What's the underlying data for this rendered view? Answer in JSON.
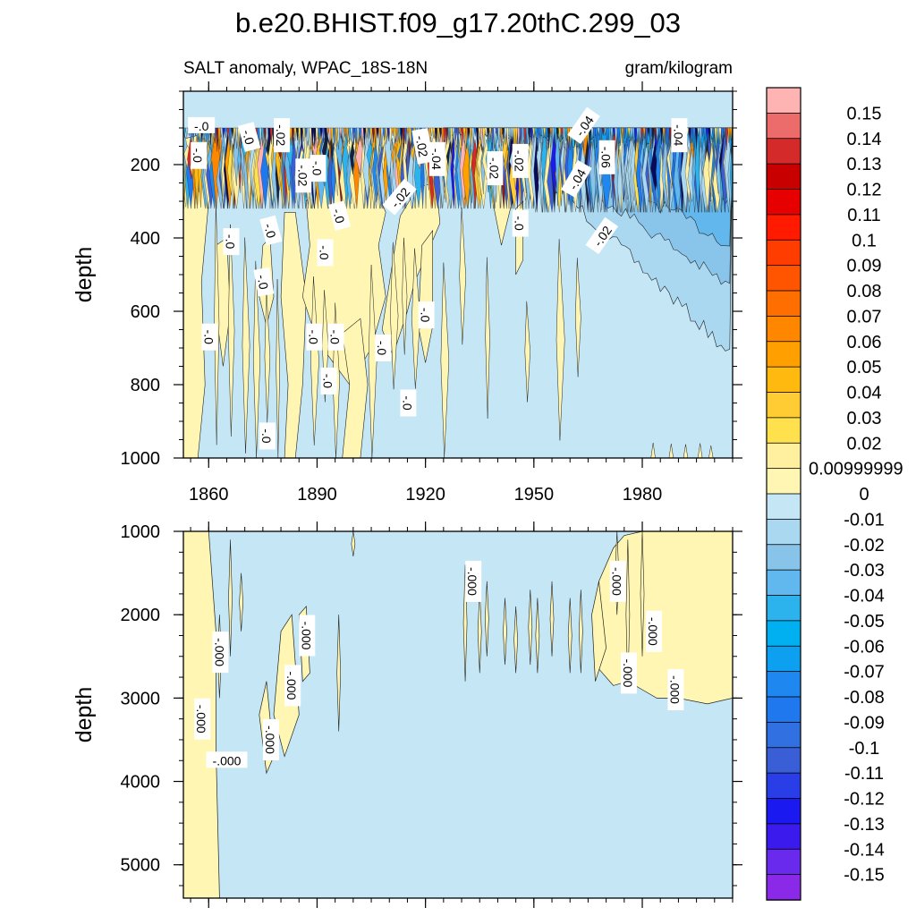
{
  "chart_data": {
    "type": "heatmap",
    "title": "b.e20.BHIST.f09_g17.20thC.299_03",
    "subtitle_left": "SALT anomaly, WPAC_18S-18N",
    "subtitle_right": "gram/kilogram",
    "x_ticks": [
      "1860",
      "1890",
      "1920",
      "1950",
      "1980"
    ],
    "x_tick_values": [
      1860,
      1890,
      1920,
      1950,
      1980
    ],
    "xlim": [
      1853,
      2005
    ],
    "panels": [
      {
        "ylabel": "depth",
        "ylim": [
          0,
          1000
        ],
        "y_ticks": [
          "200",
          "400",
          "600",
          "800",
          "1000"
        ],
        "y_tick_values": [
          200,
          400,
          600,
          800,
          1000
        ],
        "contour_labels": [
          {
            "text": "-.0",
            "year": 1858,
            "depth": 95,
            "angle": 0
          },
          {
            "text": "-.0",
            "year": 1857,
            "depth": 175,
            "angle": 90
          },
          {
            "text": "-.0",
            "year": 1871,
            "depth": 125,
            "angle": 75
          },
          {
            "text": "-.02",
            "year": 1880,
            "depth": 120,
            "angle": 90
          },
          {
            "text": "-.02",
            "year": 1886,
            "depth": 230,
            "angle": 90
          },
          {
            "text": "-.0",
            "year": 1890,
            "depth": 210,
            "angle": 90
          },
          {
            "text": "-.0",
            "year": 1896,
            "depth": 340,
            "angle": 75
          },
          {
            "text": "-.02",
            "year": 1913,
            "depth": 290,
            "angle": -50
          },
          {
            "text": "-.02",
            "year": 1919,
            "depth": 150,
            "angle": 80
          },
          {
            "text": "-.04",
            "year": 1923,
            "depth": 185,
            "angle": 90
          },
          {
            "text": "-.02",
            "year": 1939,
            "depth": 210,
            "angle": 90
          },
          {
            "text": "-.02",
            "year": 1946,
            "depth": 190,
            "angle": 90
          },
          {
            "text": "-.0",
            "year": 1946,
            "depth": 360,
            "angle": 90
          },
          {
            "text": "-.04",
            "year": 1964,
            "depth": 95,
            "angle": -55
          },
          {
            "text": "-.04",
            "year": 1962,
            "depth": 240,
            "angle": -60
          },
          {
            "text": "-.06",
            "year": 1970,
            "depth": 180,
            "angle": 90
          },
          {
            "text": "-.02",
            "year": 1969,
            "depth": 395,
            "angle": -55
          },
          {
            "text": "-.04",
            "year": 1990,
            "depth": 120,
            "angle": 90
          },
          {
            "text": "-.0",
            "year": 1866,
            "depth": 410,
            "angle": 90
          },
          {
            "text": "-.0",
            "year": 1877,
            "depth": 380,
            "angle": 75
          },
          {
            "text": "-.0",
            "year": 1875,
            "depth": 520,
            "angle": 80
          },
          {
            "text": "-.0",
            "year": 1892,
            "depth": 440,
            "angle": 90
          },
          {
            "text": "-.0",
            "year": 1860,
            "depth": 670,
            "angle": 90
          },
          {
            "text": "-.0",
            "year": 1889,
            "depth": 670,
            "angle": 90
          },
          {
            "text": "-.0",
            "year": 1895,
            "depth": 670,
            "angle": 90
          },
          {
            "text": "-.0",
            "year": 1908,
            "depth": 700,
            "angle": 90
          },
          {
            "text": "-.0",
            "year": 1920,
            "depth": 610,
            "angle": 90
          },
          {
            "text": "-.0",
            "year": 1893,
            "depth": 790,
            "angle": 90
          },
          {
            "text": "-.0",
            "year": 1915,
            "depth": 850,
            "angle": 90
          },
          {
            "text": "-.0",
            "year": 1876,
            "depth": 940,
            "angle": 90
          }
        ]
      },
      {
        "ylabel": "depth",
        "ylim": [
          1000,
          5400
        ],
        "y_ticks": [
          "1000",
          "2000",
          "3000",
          "4000",
          "5000"
        ],
        "y_tick_values": [
          1000,
          2000,
          3000,
          4000,
          5000
        ],
        "contour_labels": [
          {
            "text": "-.000",
            "year": 1863,
            "depth": 2450,
            "angle": 90
          },
          {
            "text": "-.000",
            "year": 1858,
            "depth": 3250,
            "angle": 90
          },
          {
            "text": "-.000",
            "year": 1865,
            "depth": 3750,
            "angle": 0
          },
          {
            "text": "-.000",
            "year": 1877,
            "depth": 3500,
            "angle": 90
          },
          {
            "text": "-.000",
            "year": 1883,
            "depth": 2850,
            "angle": 90
          },
          {
            "text": "-.000",
            "year": 1887,
            "depth": 2250,
            "angle": 90
          },
          {
            "text": "-.000",
            "year": 1933,
            "depth": 1600,
            "angle": 90
          },
          {
            "text": "-.000",
            "year": 1973,
            "depth": 1600,
            "angle": 90
          },
          {
            "text": "-.000",
            "year": 1976,
            "depth": 2700,
            "angle": 90
          },
          {
            "text": "-.000",
            "year": 1983,
            "depth": 2200,
            "angle": 90
          },
          {
            "text": "-.000",
            "year": 1989,
            "depth": 2900,
            "angle": 90
          }
        ]
      }
    ],
    "colorbar": {
      "levels": [
        "0.15",
        "0.14",
        "0.13",
        "0.12",
        "0.11",
        "0.1",
        "0.09",
        "0.08",
        "0.07",
        "0.06",
        "0.05",
        "0.04",
        "0.03",
        "0.02",
        "0.00999999",
        "0",
        "-0.01",
        "-0.02",
        "-0.03",
        "-0.04",
        "-0.05",
        "-0.06",
        "-0.07",
        "-0.08",
        "-0.09",
        "-0.1",
        "-0.11",
        "-0.12",
        "-0.13",
        "-0.14",
        "-0.15"
      ],
      "colors": [
        "#ffb4b4",
        "#ec6b6b",
        "#d42a2a",
        "#c80000",
        "#e60000",
        "#ff1a00",
        "#ff3d00",
        "#ff5500",
        "#ff6e00",
        "#ff8700",
        "#ffa000",
        "#ffb90f",
        "#ffcc33",
        "#ffe14d",
        "#fff0a0",
        "#fff6b3",
        "#c4e6f5",
        "#aad8f0",
        "#88c4ea",
        "#60b8ee",
        "#2cb3ee",
        "#00b0f0",
        "#0ea0f0",
        "#1e88f0",
        "#2078ee",
        "#3070e0",
        "#3a5ed6",
        "#2a3ee8",
        "#1a1af0",
        "#3a1aec",
        "#6a2aee",
        "#8a2ae8"
      ]
    },
    "colors": {
      "zero_fill": "#c4e6f5",
      "positive_fill": "#fff6b3",
      "contour_line": "#222222"
    }
  }
}
